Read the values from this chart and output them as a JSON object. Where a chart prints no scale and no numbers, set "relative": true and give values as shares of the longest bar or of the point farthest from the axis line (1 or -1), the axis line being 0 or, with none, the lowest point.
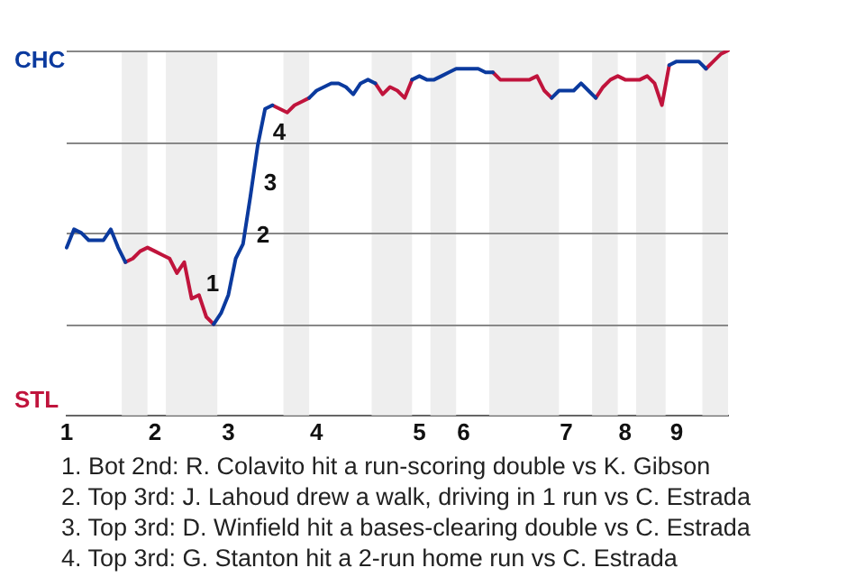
{
  "chart_data": {
    "type": "line",
    "relative": true,
    "categories": [
      "1",
      null,
      null,
      null,
      null,
      null,
      null,
      null,
      null,
      null,
      null,
      null,
      "2",
      null,
      null,
      null,
      null,
      null,
      null,
      null,
      null,
      null,
      "3",
      null,
      null,
      null,
      null,
      null,
      null,
      null,
      null,
      null,
      null,
      null,
      "4",
      null,
      null,
      null,
      null,
      null,
      null,
      null,
      null,
      null,
      null,
      null,
      null,
      null,
      "5",
      null,
      null,
      null,
      null,
      null,
      "6",
      null,
      null,
      null,
      null,
      null,
      null,
      null,
      null,
      null,
      null,
      null,
      null,
      null,
      "7",
      null,
      null,
      null,
      null,
      null,
      null,
      null,
      "8",
      null,
      null,
      null,
      null,
      null,
      null,
      "9",
      null,
      null,
      null,
      null,
      null,
      null,
      null
    ],
    "grid": false,
    "marker": "none",
    "line_style": "solid",
    "series": [
      {
        "color": "#0b3a9e",
        "values": [
          0.46,
          0.51,
          0.5,
          0.48,
          0.48,
          0.48,
          0.51,
          0.46,
          0.42,
          null,
          null,
          null,
          null,
          null,
          null,
          null,
          null,
          null,
          null,
          null,
          0.25,
          0.28,
          0.33,
          0.43,
          0.47,
          0.6,
          0.74,
          0.84,
          0.85,
          null,
          null,
          null,
          null,
          0.87,
          0.89,
          0.9,
          0.91,
          0.91,
          0.9,
          0.88,
          0.91,
          0.92,
          0.91,
          null,
          null,
          null,
          null,
          0.92,
          0.93,
          0.92,
          0.92,
          0.93,
          0.94,
          0.95,
          0.95,
          0.95,
          0.95,
          0.94,
          0.94,
          null,
          null,
          null,
          null,
          null,
          null,
          null,
          0.87,
          0.89,
          0.89,
          0.89,
          0.91,
          0.89,
          0.87,
          null,
          null,
          null,
          null,
          null,
          null,
          null,
          null,
          null,
          0.96,
          0.97,
          0.97,
          0.97,
          0.97,
          0.95,
          null,
          null,
          null
        ]
      },
      {
        "color": "#c0143c",
        "values": [
          null,
          null,
          null,
          null,
          null,
          null,
          null,
          null,
          0.42,
          0.43,
          0.45,
          0.46,
          0.45,
          0.44,
          0.43,
          0.39,
          0.42,
          0.32,
          0.33,
          0.27,
          0.25,
          null,
          null,
          null,
          null,
          null,
          null,
          null,
          0.85,
          0.84,
          0.83,
          0.85,
          0.86,
          0.87,
          null,
          null,
          null,
          null,
          null,
          null,
          null,
          null,
          0.91,
          0.88,
          0.9,
          0.89,
          0.87,
          0.92,
          null,
          null,
          null,
          null,
          null,
          null,
          null,
          null,
          null,
          null,
          0.94,
          0.92,
          0.92,
          0.92,
          0.92,
          0.92,
          0.93,
          0.89,
          0.87,
          null,
          null,
          null,
          null,
          null,
          0.87,
          0.9,
          0.92,
          0.93,
          0.92,
          0.92,
          0.92,
          0.93,
          0.91,
          0.85,
          0.96,
          null,
          null,
          null,
          null,
          0.95,
          0.97,
          0.99,
          1.0
        ]
      }
    ],
    "ref_lines": [
      {
        "axis": "y",
        "value": 0.25,
        "color": "#888888"
      },
      {
        "axis": "y",
        "value": 0.5,
        "color": "#888888"
      },
      {
        "axis": "y",
        "value": 0.75,
        "color": "#888888"
      },
      {
        "axis": "y",
        "value": 1,
        "color": "#888888"
      }
    ],
    "annotations": [
      "CHC",
      "STL",
      "1",
      "2",
      "3",
      "4",
      "1. Bot 2nd: R. Colavito hit a run-scoring double vs K. Gibson",
      "2. Top 3rd: J. Lahoud drew a walk, driving in 1 run vs C. Estrada",
      "3. Top 3rd: D. Winfield hit a bases-clearing double vs C. Estrada",
      "4. Top 3rd: G. Stanton hit a 2-run home run vs C. Estrada"
    ]
  }
}
